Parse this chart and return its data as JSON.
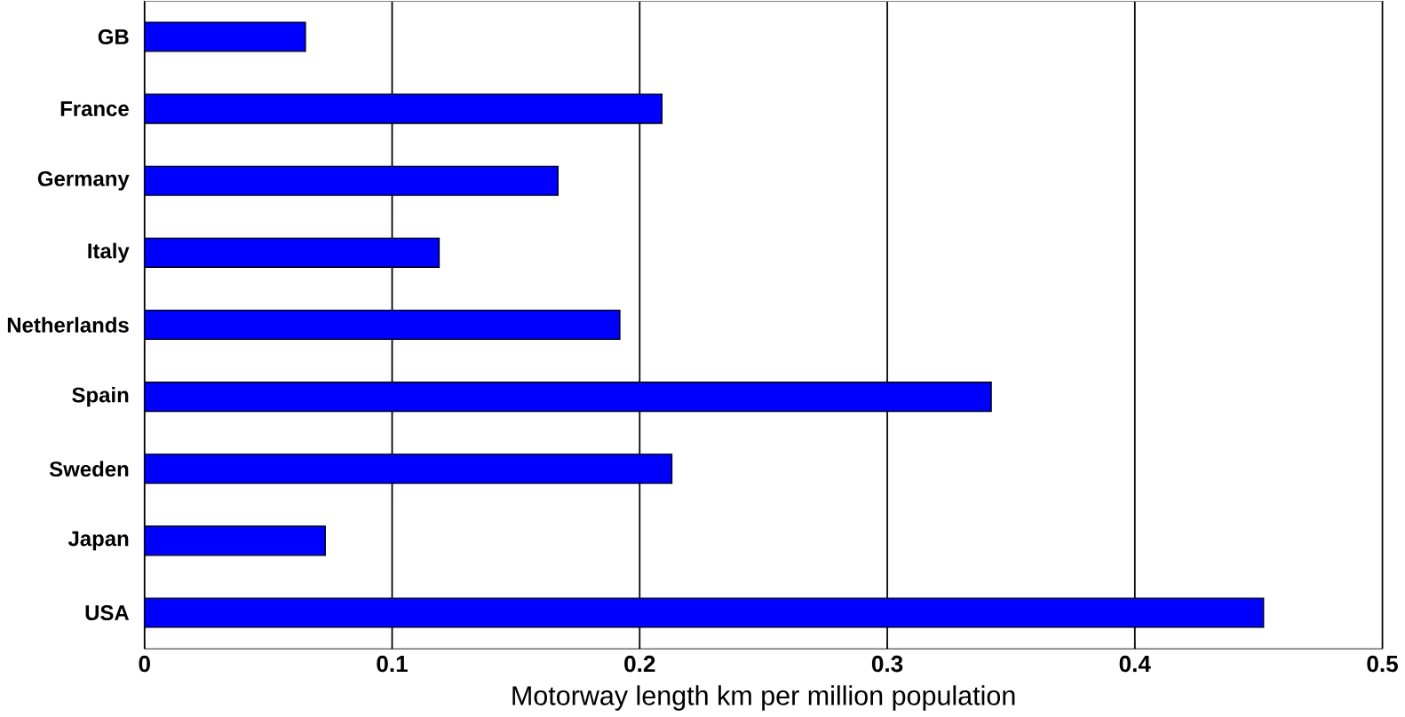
{
  "chart_data": {
    "type": "bar",
    "orientation": "horizontal",
    "xlabel": "Motorway length km per million population",
    "categories": [
      "GB",
      "France",
      "Germany",
      "Italy",
      "Netherlands",
      "Spain",
      "Sweden",
      "Japan",
      "USA"
    ],
    "values": [
      0.065,
      0.209,
      0.167,
      0.119,
      0.192,
      0.342,
      0.213,
      0.073,
      0.452
    ],
    "color": "#0000ff",
    "xlim": [
      0,
      0.5
    ],
    "xticks": [
      0,
      0.1,
      0.2,
      0.3,
      0.4,
      0.5
    ],
    "grid": "x"
  }
}
